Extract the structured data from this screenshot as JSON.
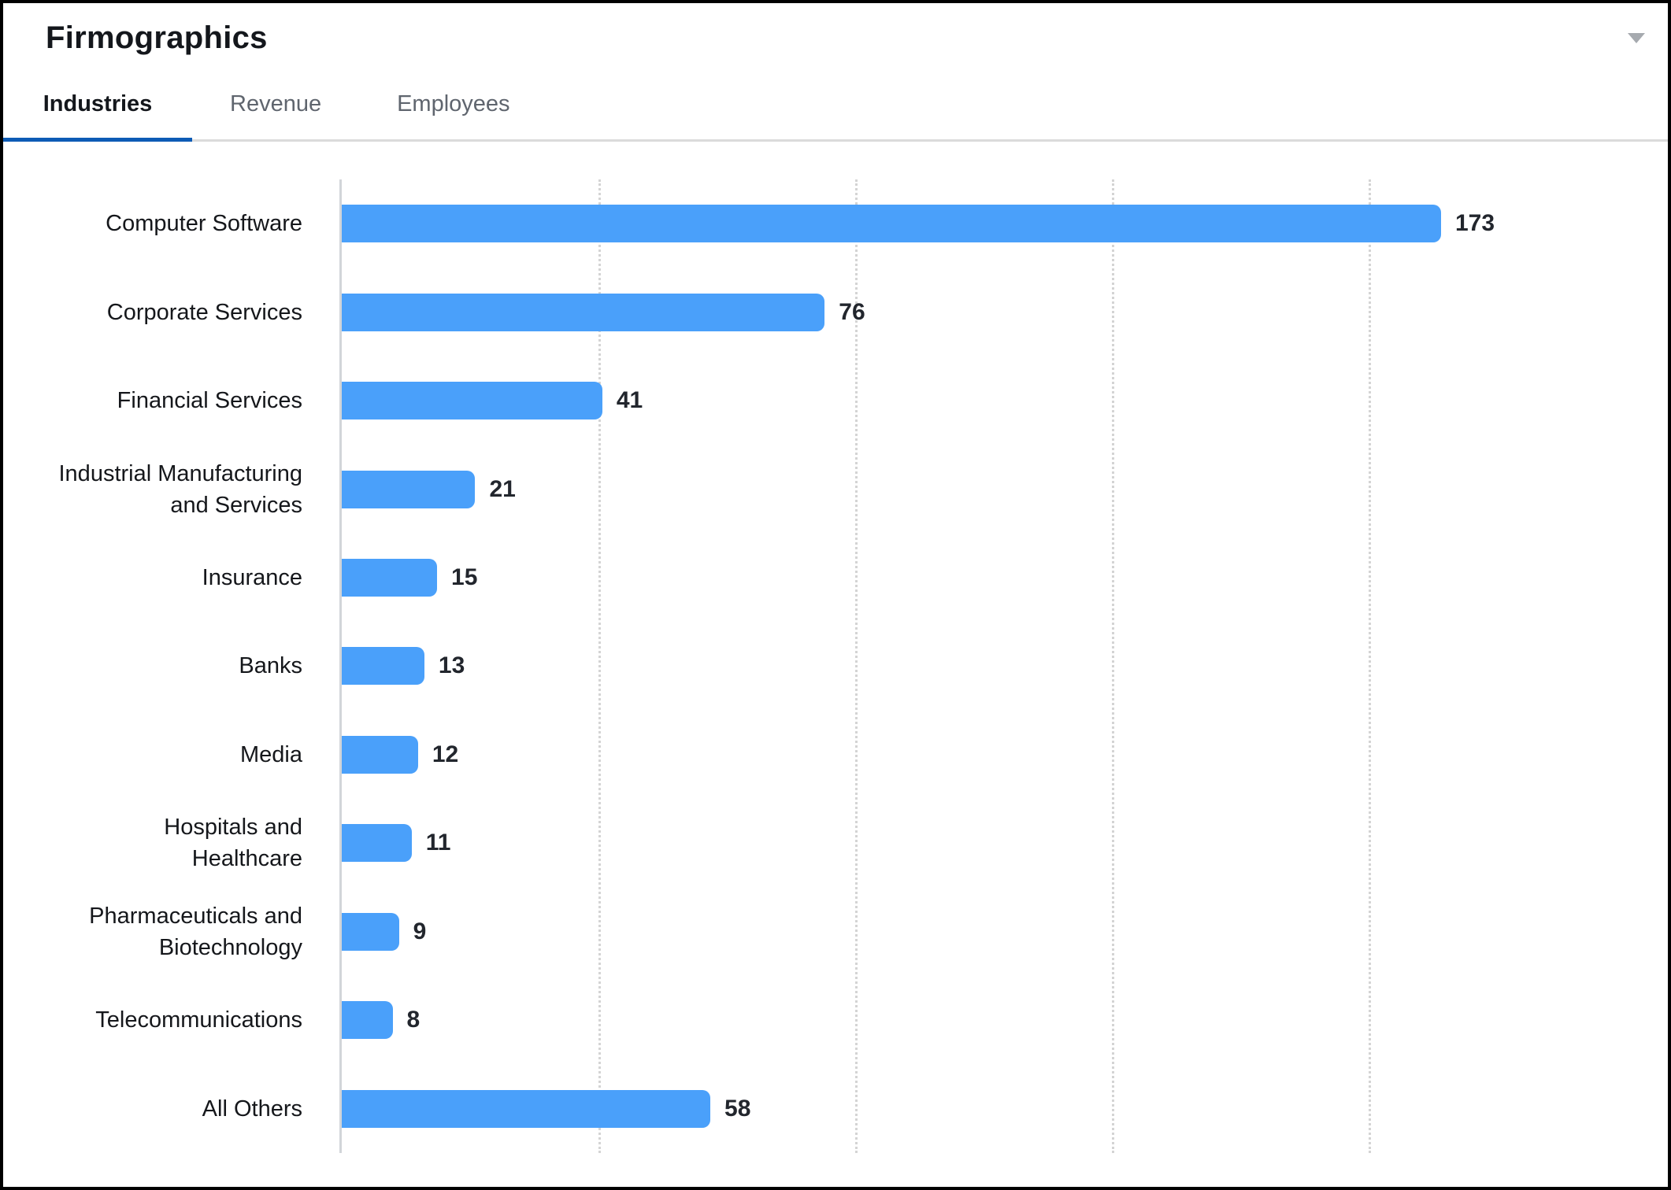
{
  "header": {
    "title": "Firmographics",
    "collapse_icon": "chevron-down",
    "tabs": [
      {
        "label": "Industries",
        "active": true
      },
      {
        "label": "Revenue",
        "active": false
      },
      {
        "label": "Employees",
        "active": false
      }
    ]
  },
  "colors": {
    "bar": "#4AA0FA",
    "active_tab_underline": "#0D5BB5",
    "tab_divider": "#DBDBDB",
    "inactive_tab_text": "#5F656E",
    "dark_text": "#14171C",
    "value_text": "#22262D",
    "axis_line": "#D2D5D9",
    "gridline": "#D4D4D4",
    "chevron": "#A6AAAF",
    "window_border": "#000000"
  },
  "chart_data": {
    "type": "bar",
    "orientation": "horizontal",
    "title": "Firmographics - Industries",
    "xlabel": "",
    "ylabel": "",
    "categories": [
      "Computer Software",
      "Corporate Services",
      "Financial Services",
      "Industrial Manufacturing and Services",
      "Insurance",
      "Banks",
      "Media",
      "Hospitals and Healthcare",
      "Pharmaceuticals and Biotechnology",
      "Telecommunications",
      "All Others"
    ],
    "display_labels": [
      "Computer Software",
      "Corporate Services",
      "Financial Services",
      "Industrial Manufacturing\nand Services",
      "Insurance",
      "Banks",
      "Media",
      "Hospitals and\nHealthcare",
      "Pharmaceuticals and\nBiotechnology",
      "Telecommunications",
      "All Others"
    ],
    "values": [
      173,
      76,
      41,
      21,
      15,
      13,
      12,
      11,
      9,
      8,
      58
    ],
    "xlim": [
      0,
      202
    ],
    "x_gridline_count": 4,
    "grid": true,
    "value_labels": true,
    "legend": "none"
  }
}
